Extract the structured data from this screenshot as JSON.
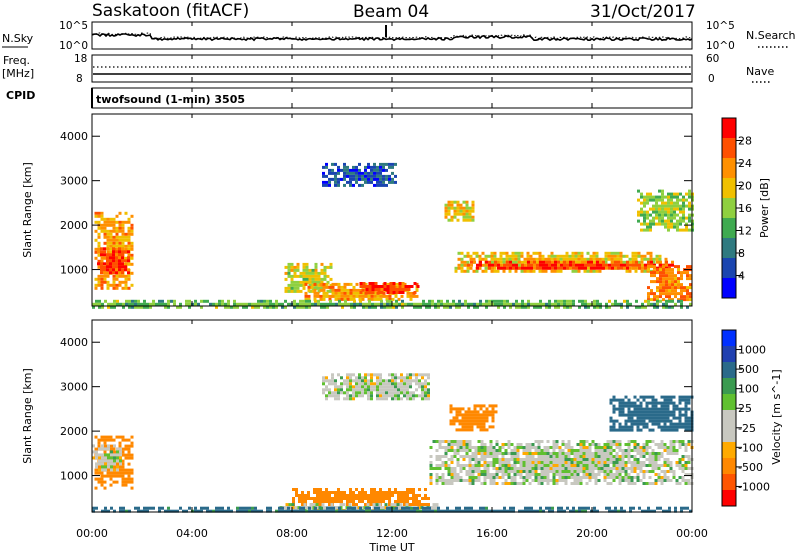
{
  "header": {
    "site": "Saskatoon (fitACF)",
    "beam": "Beam 04",
    "date": "31/Oct/2017",
    "cpid_label": "CPID",
    "cpid_text": "twofsound (1-min) 3505"
  },
  "noise_panel": {
    "left_label": "N.Sky",
    "right_label": "N.Search",
    "left_ticks": [
      "10^5",
      "10^0"
    ],
    "right_ticks": [
      "10^5",
      "10^0"
    ]
  },
  "freq_panel": {
    "left_label": "Freq.",
    "left_unit": "[MHz]",
    "right_label": "Nave",
    "left_ticks": [
      "18",
      "8"
    ],
    "right_ticks": [
      "60",
      "0"
    ]
  },
  "x_axis": {
    "ticks": [
      "00:00",
      "04:00",
      "08:00",
      "12:00",
      "16:00",
      "20:00",
      "00:00"
    ],
    "label": "Time UT"
  },
  "colors": {
    "power_scale": [
      "#0000ff",
      "#1a45b0",
      "#2f7a80",
      "#3faa50",
      "#8fd040",
      "#f0c000",
      "#ff9000",
      "#ff5000",
      "#ff0000"
    ],
    "velocity_scale": [
      "#ff0000",
      "#ff5500",
      "#ff8800",
      "#ffaa00",
      "#c8c8c0",
      "#c8c8c0",
      "#60c030",
      "#3a9a50",
      "#2a6a8a",
      "#2040b0",
      "#0030ff"
    ]
  },
  "chart_data": [
    {
      "type": "heatmap",
      "name": "power",
      "ylabel": "Slant Range [km]",
      "yticks": [
        "4000",
        "3000",
        "2000",
        "1000"
      ],
      "ylim": [
        180,
        4500
      ],
      "xlim": [
        0,
        24
      ],
      "colorbar": {
        "label": "Power [dB]",
        "ticks": [
          "28",
          "24",
          "20",
          "16",
          "12",
          "8",
          "4"
        ],
        "range": [
          0,
          32
        ]
      },
      "regions": [
        {
          "t": [
            0.1,
            1.6
          ],
          "r": [
            600,
            2300
          ],
          "v": 22
        },
        {
          "t": [
            0.2,
            1.5
          ],
          "r": [
            900,
            1500
          ],
          "v": 28
        },
        {
          "t": [
            7.7,
            9.6
          ],
          "r": [
            500,
            1150
          ],
          "v": 18
        },
        {
          "t": [
            8.5,
            13.0
          ],
          "r": [
            300,
            700
          ],
          "v": 22
        },
        {
          "t": [
            10.7,
            13.0
          ],
          "r": [
            500,
            720
          ],
          "v": 28
        },
        {
          "t": [
            9.2,
            12.2
          ],
          "r": [
            2900,
            3400
          ],
          "v": 6
        },
        {
          "t": [
            14.1,
            15.2
          ],
          "r": [
            2100,
            2550
          ],
          "v": 20
        },
        {
          "t": [
            14.5,
            23.0
          ],
          "r": [
            950,
            1400
          ],
          "v": 20
        },
        {
          "t": [
            15.0,
            23.5
          ],
          "r": [
            1000,
            1200
          ],
          "v": 28
        },
        {
          "t": [
            21.8,
            24.0
          ],
          "r": [
            1900,
            2800
          ],
          "v": 16
        },
        {
          "t": [
            22.2,
            24.0
          ],
          "r": [
            300,
            1100
          ],
          "v": 24
        },
        {
          "t": [
            0.0,
            24.0
          ],
          "r": [
            180,
            320
          ],
          "v": 14
        }
      ]
    },
    {
      "type": "heatmap",
      "name": "velocity",
      "ylabel": "Slant Range [km]",
      "yticks": [
        "4000",
        "3000",
        "2000",
        "1000"
      ],
      "ylim": [
        180,
        4500
      ],
      "xlim": [
        0,
        24
      ],
      "colorbar": {
        "label": "Velocity [m s^-1]",
        "ticks": [
          "1000",
          "500",
          "100",
          "25",
          "-25",
          "-100",
          "-500",
          "-1000"
        ],
        "range": [
          -1000,
          1000
        ]
      },
      "regions": [
        {
          "t": [
            0.1,
            1.6
          ],
          "r": [
            700,
            1900
          ],
          "v": -300
        },
        {
          "t": [
            0.0,
            1.2
          ],
          "r": [
            1100,
            1700
          ],
          "v": 0
        },
        {
          "t": [
            8.0,
            13.5
          ],
          "r": [
            380,
            720
          ],
          "v": -200
        },
        {
          "t": [
            7.5,
            13.8
          ],
          "r": [
            180,
            380
          ],
          "v": 0
        },
        {
          "t": [
            9.2,
            13.5
          ],
          "r": [
            2700,
            3300
          ],
          "v": 0
        },
        {
          "t": [
            13.5,
            24.0
          ],
          "r": [
            800,
            1800
          ],
          "v": 0
        },
        {
          "t": [
            14.3,
            16.1
          ],
          "r": [
            2000,
            2600
          ],
          "v": -300
        },
        {
          "t": [
            20.7,
            24.0
          ],
          "r": [
            2000,
            2800
          ],
          "v": 200
        },
        {
          "t": [
            0.0,
            24.0
          ],
          "r": [
            180,
            300
          ],
          "v": 150
        }
      ]
    }
  ]
}
